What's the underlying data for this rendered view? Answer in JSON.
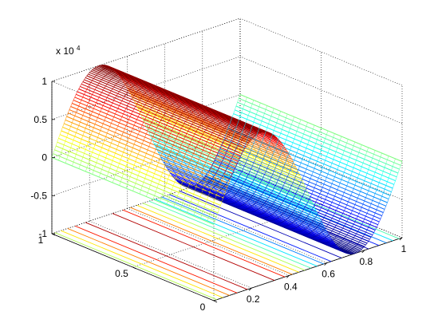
{
  "chart_data": {
    "type": "surface",
    "surface_style": "mesh",
    "colormap": "jet",
    "grid": true,
    "exponent_label": "x 10",
    "exponent_power": "4",
    "x_axis": {
      "range": [
        0,
        1
      ],
      "ticks": [
        "0.2",
        "0.4",
        "0.6",
        "0.8",
        "1"
      ],
      "tick_values": [
        0.2,
        0.4,
        0.6,
        0.8,
        1
      ]
    },
    "y_axis": {
      "range": [
        0,
        1
      ],
      "ticks": [
        "0",
        "0.5",
        "1"
      ],
      "tick_values": [
        0,
        0.5,
        1
      ]
    },
    "z_axis": {
      "range": [
        -1,
        1
      ],
      "ticks": [
        "-1",
        "-0.5",
        "0",
        "0.5",
        "1"
      ],
      "tick_values": [
        -1,
        -0.5,
        0,
        0.5,
        1
      ]
    },
    "surface": {
      "function": "z = sin(2*pi*x) (scaled by 1e4), constant along y",
      "x_samples": [
        0,
        0.05,
        0.1,
        0.15,
        0.2,
        0.25,
        0.3,
        0.35,
        0.4,
        0.45,
        0.5,
        0.55,
        0.6,
        0.65,
        0.7,
        0.75,
        0.8,
        0.85,
        0.9,
        0.95,
        1
      ],
      "z_values": [
        0,
        0.309,
        0.588,
        0.809,
        0.951,
        1,
        0.951,
        0.809,
        0.588,
        0.309,
        0,
        -0.309,
        -0.588,
        -0.809,
        -0.951,
        -1,
        -0.951,
        -0.809,
        -0.588,
        -0.309,
        0
      ]
    },
    "contours": {
      "plane": "z = -1",
      "levels": [
        -0.9,
        -0.7,
        -0.5,
        -0.3,
        -0.1,
        0.1,
        0.3,
        0.5,
        0.7,
        0.9
      ]
    }
  }
}
